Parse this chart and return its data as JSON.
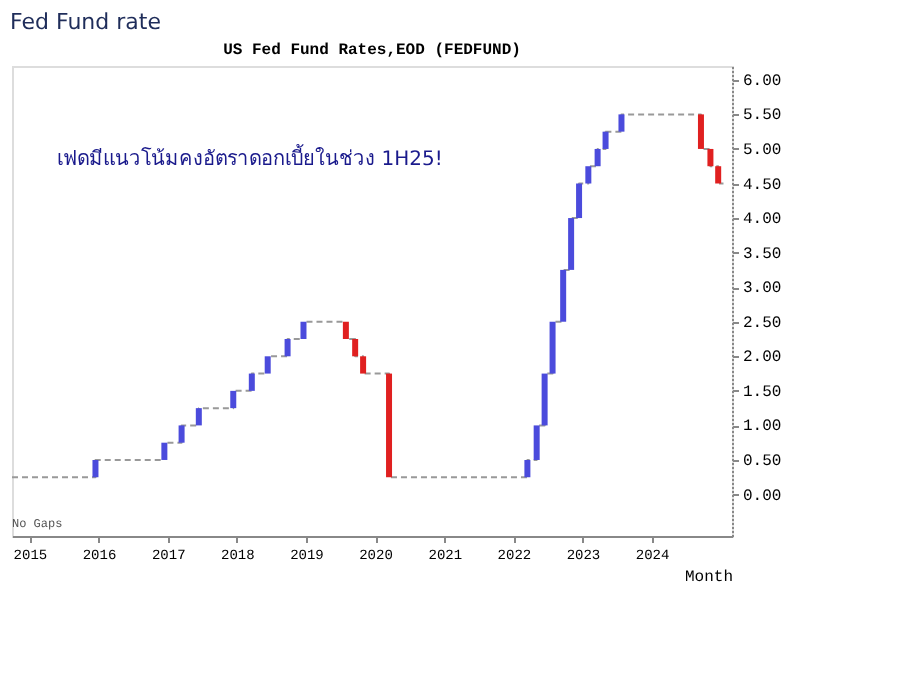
{
  "chart_data": {
    "type": "step",
    "title": "Fed Fund rate",
    "subtitle": "US Fed Fund Rates,EOD (FEDFUND)",
    "xlabel": "Month",
    "series": [
      {
        "type": "step",
        "color": "#999999",
        "line_style": "dashed",
        "x": [
          "2014-10-01",
          "2015-12-16",
          "2016-12-14",
          "2017-03-15",
          "2017-06-14",
          "2017-12-13",
          "2018-03-21",
          "2018-06-13",
          "2018-09-26",
          "2018-12-19",
          "2019-07-31",
          "2019-09-18",
          "2019-10-30",
          "2020-03-15",
          "2022-03-16",
          "2022-05-04",
          "2022-06-15",
          "2022-07-27",
          "2022-09-21",
          "2022-11-02",
          "2022-12-14",
          "2023-02-01",
          "2023-03-22",
          "2023-05-03",
          "2023-07-26",
          "2024-09-18",
          "2024-11-07",
          "2024-12-18",
          "2025-01-15"
        ],
        "values": [
          0.25,
          0.5,
          0.75,
          1.0,
          1.25,
          1.5,
          1.75,
          2.0,
          2.25,
          2.5,
          2.25,
          2.0,
          1.75,
          0.25,
          0.5,
          1.0,
          1.75,
          2.5,
          3.25,
          4.0,
          4.5,
          4.75,
          5.0,
          5.25,
          5.5,
          5.0,
          4.75,
          4.5,
          4.5
        ]
      },
      {
        "type": "bar",
        "x": [
          "2015-12-16",
          "2016-12-14",
          "2017-03-15",
          "2017-06-14",
          "2017-12-13",
          "2018-03-21",
          "2018-06-13",
          "2018-09-26",
          "2018-12-19",
          "2019-07-31",
          "2019-09-18",
          "2019-10-30",
          "2020-03-15",
          "2022-03-16",
          "2022-05-04",
          "2022-06-15",
          "2022-07-27",
          "2022-09-21",
          "2022-11-02",
          "2022-12-14",
          "2023-02-01",
          "2023-03-22",
          "2023-05-03",
          "2023-07-26",
          "2024-09-18",
          "2024-11-07",
          "2024-12-18"
        ],
        "base": [
          0.25,
          0.5,
          0.75,
          1.0,
          1.25,
          1.5,
          1.75,
          2.0,
          2.25,
          2.5,
          2.25,
          2.0,
          1.75,
          0.25,
          0.5,
          1.0,
          1.75,
          2.5,
          3.25,
          4.0,
          4.5,
          4.75,
          5.0,
          5.25,
          5.5,
          5.0,
          4.75
        ],
        "values": [
          0.25,
          0.25,
          0.25,
          0.25,
          0.25,
          0.25,
          0.25,
          0.25,
          0.25,
          -0.25,
          -0.25,
          -0.25,
          -1.5,
          0.25,
          0.5,
          0.75,
          0.75,
          0.75,
          0.75,
          0.5,
          0.25,
          0.25,
          0.25,
          0.25,
          -0.5,
          -0.25,
          -0.25
        ],
        "colors": [
          "#4b4bdc",
          "#4b4bdc",
          "#4b4bdc",
          "#4b4bdc",
          "#4b4bdc",
          "#4b4bdc",
          "#4b4bdc",
          "#4b4bdc",
          "#4b4bdc",
          "#e02020",
          "#e02020",
          "#e02020",
          "#e02020",
          "#4b4bdc",
          "#4b4bdc",
          "#4b4bdc",
          "#4b4bdc",
          "#4b4bdc",
          "#4b4bdc",
          "#4b4bdc",
          "#4b4bdc",
          "#4b4bdc",
          "#4b4bdc",
          "#4b4bdc",
          "#e02020",
          "#e02020",
          "#e02020"
        ]
      }
    ],
    "xlim": [
      "2014-10-01",
      "2025-03-01"
    ],
    "xticks": [
      {
        "value": "2015-01-01",
        "label": "2015"
      },
      {
        "value": "2016-01-01",
        "label": "2016"
      },
      {
        "value": "2017-01-01",
        "label": "2017"
      },
      {
        "value": "2018-01-01",
        "label": "2018"
      },
      {
        "value": "2019-01-01",
        "label": "2019"
      },
      {
        "value": "2020-01-01",
        "label": "2020"
      },
      {
        "value": "2021-01-01",
        "label": "2021"
      },
      {
        "value": "2022-01-01",
        "label": "2022"
      },
      {
        "value": "2023-01-01",
        "label": "2023"
      },
      {
        "value": "2024-01-01",
        "label": "2024"
      }
    ],
    "ylim": [
      -0.6,
      6.2
    ],
    "yticks": [
      {
        "value": 0,
        "label": "0.00"
      },
      {
        "value": 0.5,
        "label": "0.50"
      },
      {
        "value": 1,
        "label": "1.00"
      },
      {
        "value": 1.5,
        "label": "1.50"
      },
      {
        "value": 2,
        "label": "2.00"
      },
      {
        "value": 2.5,
        "label": "2.50"
      },
      {
        "value": 3,
        "label": "3.00"
      },
      {
        "value": 3.5,
        "label": "3.50"
      },
      {
        "value": 4,
        "label": "4.00"
      },
      {
        "value": 4.5,
        "label": "4.50"
      },
      {
        "value": 5,
        "label": "5.00"
      },
      {
        "value": 5.5,
        "label": "5.50"
      },
      {
        "value": 6,
        "label": "6.00"
      }
    ],
    "grid": false,
    "legend": false,
    "annotations": [
      "เฟดมีแนวโน้มคงอัตราดอกเบี้ยในช่วง 1H25!",
      "No Gaps"
    ]
  }
}
